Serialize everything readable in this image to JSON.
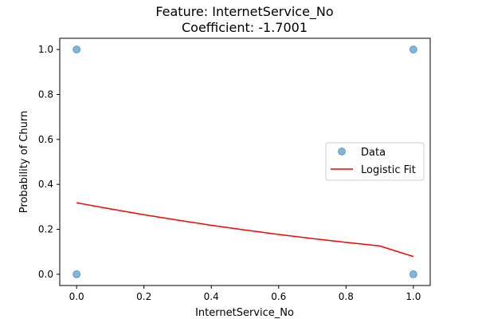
{
  "chart_data": {
    "type": "scatter",
    "title": "Feature: InternetService_No",
    "subtitle": "Coefficient: -1.7001",
    "xlabel": "InternetService_No",
    "ylabel": "Probability of Churn",
    "xlim": [
      -0.05,
      1.05
    ],
    "ylim": [
      -0.05,
      1.05
    ],
    "xticks": [
      0.0,
      0.2,
      0.4,
      0.6,
      0.8,
      1.0
    ],
    "xtick_labels": [
      "0.0",
      "0.2",
      "0.4",
      "0.6",
      "0.8",
      "1.0"
    ],
    "yticks": [
      0.0,
      0.2,
      0.4,
      0.6,
      0.8,
      1.0
    ],
    "ytick_labels": [
      "0.0",
      "0.2",
      "0.4",
      "0.6",
      "0.8",
      "1.0"
    ],
    "grid": false,
    "legend_position": "center-right",
    "series": [
      {
        "name": "Data",
        "kind": "scatter",
        "color": "#1f77b4",
        "points": [
          {
            "x": 0.0,
            "y": 1.0
          },
          {
            "x": 0.0,
            "y": 0.0
          },
          {
            "x": 1.0,
            "y": 1.0
          },
          {
            "x": 1.0,
            "y": 0.0
          }
        ]
      },
      {
        "name": "Logistic Fit",
        "kind": "line",
        "color": "#ff0000",
        "x": [
          0.0,
          0.1,
          0.2,
          0.3,
          0.4,
          0.5,
          0.6,
          0.7,
          0.8,
          0.9,
          1.0
        ],
        "y": [
          0.318,
          0.291,
          0.265,
          0.241,
          0.218,
          0.197,
          0.177,
          0.159,
          0.142,
          0.126,
          0.079
        ]
      }
    ]
  }
}
